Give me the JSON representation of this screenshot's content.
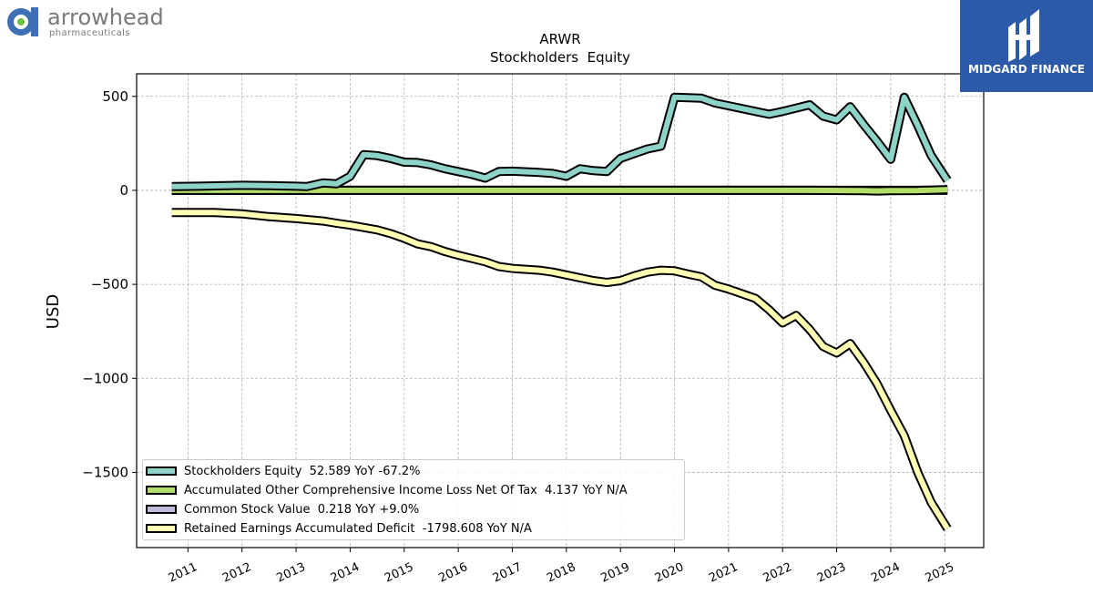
{
  "branding": {
    "company_name": "arrowhead",
    "company_sub": "pharmaceuticals",
    "watermark_name": "MIDGARD FINANCE"
  },
  "chart_data": {
    "type": "line",
    "title": "ARWR",
    "subtitle": "Stockholders  Equity",
    "ylabel": "USD",
    "xlabel": "",
    "ylim": [
      -1900,
      620
    ],
    "xlim": [
      2010.05,
      2025.72
    ],
    "yticks": [
      500,
      0,
      -500,
      -1000,
      -1500
    ],
    "ytick_labels": [
      "500",
      "0",
      "−500",
      "−1000",
      "−1500"
    ],
    "xticks": [
      2011,
      2012,
      2013,
      2014,
      2015,
      2016,
      2017,
      2018,
      2019,
      2020,
      2021,
      2022,
      2023,
      2024,
      2025
    ],
    "grid": true,
    "legend_position": "lower-left",
    "series": [
      {
        "name": "Stockholders Equity",
        "legend_label": "Stockholders Equity  52.589 YoY -67.2%",
        "color": "#8dd3c7",
        "points": [
          [
            2010.7,
            20
          ],
          [
            2011.2,
            22
          ],
          [
            2011.7,
            25
          ],
          [
            2012.0,
            27
          ],
          [
            2012.5,
            25
          ],
          [
            2013.0,
            22
          ],
          [
            2013.2,
            20
          ],
          [
            2013.5,
            40
          ],
          [
            2013.75,
            35
          ],
          [
            2014.0,
            75
          ],
          [
            2014.25,
            190
          ],
          [
            2014.5,
            185
          ],
          [
            2014.75,
            170
          ],
          [
            2015.0,
            150
          ],
          [
            2015.25,
            148
          ],
          [
            2015.5,
            135
          ],
          [
            2015.75,
            115
          ],
          [
            2016.0,
            100
          ],
          [
            2016.25,
            85
          ],
          [
            2016.5,
            65
          ],
          [
            2016.75,
            100
          ],
          [
            2017.0,
            102
          ],
          [
            2017.5,
            95
          ],
          [
            2017.75,
            90
          ],
          [
            2018.0,
            75
          ],
          [
            2018.25,
            115
          ],
          [
            2018.5,
            105
          ],
          [
            2018.75,
            100
          ],
          [
            2019.0,
            170
          ],
          [
            2019.25,
            195
          ],
          [
            2019.5,
            220
          ],
          [
            2019.75,
            235
          ],
          [
            2020.0,
            495
          ],
          [
            2020.5,
            490
          ],
          [
            2020.75,
            465
          ],
          [
            2021.0,
            450
          ],
          [
            2021.5,
            420
          ],
          [
            2021.75,
            405
          ],
          [
            2022.0,
            420
          ],
          [
            2022.5,
            455
          ],
          [
            2022.75,
            395
          ],
          [
            2023.0,
            375
          ],
          [
            2023.25,
            445
          ],
          [
            2023.5,
            350
          ],
          [
            2023.75,
            260
          ],
          [
            2024.0,
            165
          ],
          [
            2024.25,
            495
          ],
          [
            2024.5,
            345
          ],
          [
            2024.75,
            185
          ],
          [
            2025.05,
            53
          ]
        ]
      },
      {
        "name": "Accumulated Other Comprehensive Income Loss Net Of Tax",
        "legend_label": "Accumulated Other Comprehensive Income Loss Net Of Tax  4.137 YoY N/A",
        "color": "#b3de69",
        "points": [
          [
            2010.7,
            0
          ],
          [
            2011.5,
            0
          ],
          [
            2012.5,
            0
          ],
          [
            2013.5,
            0
          ],
          [
            2014.5,
            0
          ],
          [
            2015.5,
            0
          ],
          [
            2016.5,
            0
          ],
          [
            2017.5,
            0
          ],
          [
            2018.5,
            0
          ],
          [
            2019.5,
            0
          ],
          [
            2020.5,
            0
          ],
          [
            2021.5,
            0
          ],
          [
            2022.5,
            0
          ],
          [
            2023.5,
            -2
          ],
          [
            2023.75,
            -3
          ],
          [
            2024.0,
            -2
          ],
          [
            2024.5,
            -1
          ],
          [
            2025.05,
            4
          ]
        ]
      },
      {
        "name": "Common Stock Value",
        "legend_label": "Common Stock Value  0.218 YoY +9.0%",
        "color": "#bebada",
        "points": [
          [
            2010.7,
            0
          ],
          [
            2012.0,
            0
          ],
          [
            2014.0,
            0
          ],
          [
            2016.0,
            0
          ],
          [
            2018.0,
            0
          ],
          [
            2020.0,
            0
          ],
          [
            2022.0,
            0
          ],
          [
            2024.0,
            0
          ],
          [
            2025.05,
            0.2
          ]
        ]
      },
      {
        "name": "Retained Earnings Accumulated Deficit",
        "legend_label": "Retained Earnings Accumulated Deficit  -1798.608 YoY N/A",
        "color": "#ffffb3",
        "points": [
          [
            2010.7,
            -118
          ],
          [
            2011.0,
            -118
          ],
          [
            2011.5,
            -118
          ],
          [
            2012.0,
            -125
          ],
          [
            2012.5,
            -140
          ],
          [
            2013.0,
            -150
          ],
          [
            2013.5,
            -163
          ],
          [
            2013.75,
            -175
          ],
          [
            2014.0,
            -185
          ],
          [
            2014.5,
            -210
          ],
          [
            2014.75,
            -230
          ],
          [
            2015.0,
            -255
          ],
          [
            2015.25,
            -285
          ],
          [
            2015.5,
            -300
          ],
          [
            2015.75,
            -325
          ],
          [
            2016.0,
            -345
          ],
          [
            2016.5,
            -380
          ],
          [
            2016.75,
            -405
          ],
          [
            2017.0,
            -415
          ],
          [
            2017.5,
            -425
          ],
          [
            2017.75,
            -435
          ],
          [
            2018.0,
            -450
          ],
          [
            2018.25,
            -465
          ],
          [
            2018.5,
            -480
          ],
          [
            2018.75,
            -490
          ],
          [
            2019.0,
            -480
          ],
          [
            2019.25,
            -455
          ],
          [
            2019.5,
            -435
          ],
          [
            2019.75,
            -425
          ],
          [
            2020.0,
            -428
          ],
          [
            2020.25,
            -445
          ],
          [
            2020.5,
            -460
          ],
          [
            2020.75,
            -505
          ],
          [
            2021.0,
            -525
          ],
          [
            2021.25,
            -550
          ],
          [
            2021.5,
            -575
          ],
          [
            2021.75,
            -635
          ],
          [
            2022.0,
            -705
          ],
          [
            2022.25,
            -665
          ],
          [
            2022.5,
            -740
          ],
          [
            2022.75,
            -830
          ],
          [
            2023.0,
            -865
          ],
          [
            2023.25,
            -815
          ],
          [
            2023.5,
            -915
          ],
          [
            2023.75,
            -1030
          ],
          [
            2024.0,
            -1170
          ],
          [
            2024.25,
            -1305
          ],
          [
            2024.5,
            -1500
          ],
          [
            2024.75,
            -1660
          ],
          [
            2025.05,
            -1799
          ]
        ]
      }
    ]
  }
}
